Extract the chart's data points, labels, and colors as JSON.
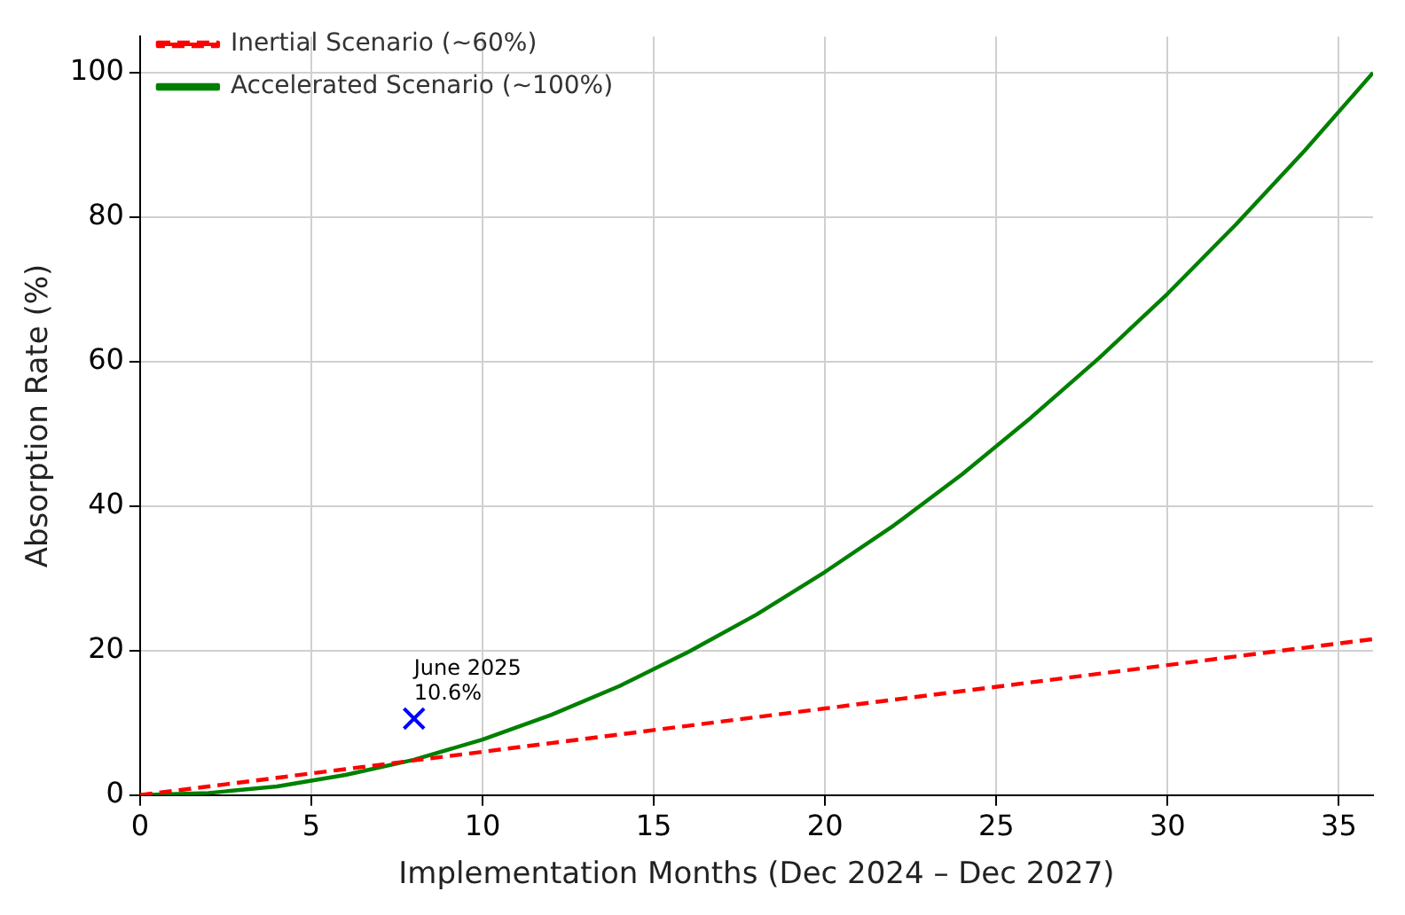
{
  "chart_data": {
    "type": "line",
    "xlabel": "Implementation Months (Dec 2024 – Dec 2027)",
    "ylabel": "Absorption Rate (%)",
    "xlim": [
      0,
      36
    ],
    "xticks": [
      0,
      5,
      10,
      15,
      20,
      25,
      30,
      35
    ],
    "ylim": [
      0,
      105
    ],
    "yticks": [
      0,
      20,
      40,
      60,
      80,
      100
    ],
    "grid": true,
    "legend": "top left",
    "series": [
      {
        "name": "Inertial Scenario (~60%)",
        "color": "#ff0000",
        "line_style": "dashed",
        "x": [
          0,
          2,
          4,
          6,
          8,
          10,
          12,
          14,
          16,
          18,
          20,
          22,
          24,
          26,
          28,
          30,
          32,
          34,
          36
        ],
        "values": [
          0,
          1.2,
          2.4,
          3.6,
          4.8,
          6,
          7.2,
          8.4,
          9.6,
          10.8,
          12,
          13.2,
          14.4,
          15.6,
          16.8,
          18,
          19.2,
          20.4,
          21.6
        ]
      },
      {
        "name": "Accelerated Scenario (~100%)",
        "color": "#008000",
        "line_style": "solid",
        "x": [
          0,
          2,
          4,
          6,
          8,
          10,
          12,
          14,
          16,
          18,
          20,
          22,
          24,
          26,
          28,
          30,
          32,
          34,
          36
        ],
        "values": [
          0,
          0.3,
          1.2,
          2.8,
          4.9,
          7.7,
          11.1,
          15.1,
          19.8,
          25,
          30.9,
          37.3,
          44.4,
          52.2,
          60.5,
          69.4,
          79,
          89.2,
          100
        ]
      },
      {
        "type": "scatter",
        "color": "#0000ff",
        "marker": "cross",
        "x": [
          8
        ],
        "values": [
          10.6
        ]
      }
    ],
    "annotations": [
      {
        "text": "June 2025\n10.6%",
        "x": 8,
        "y": 10.6
      }
    ]
  }
}
